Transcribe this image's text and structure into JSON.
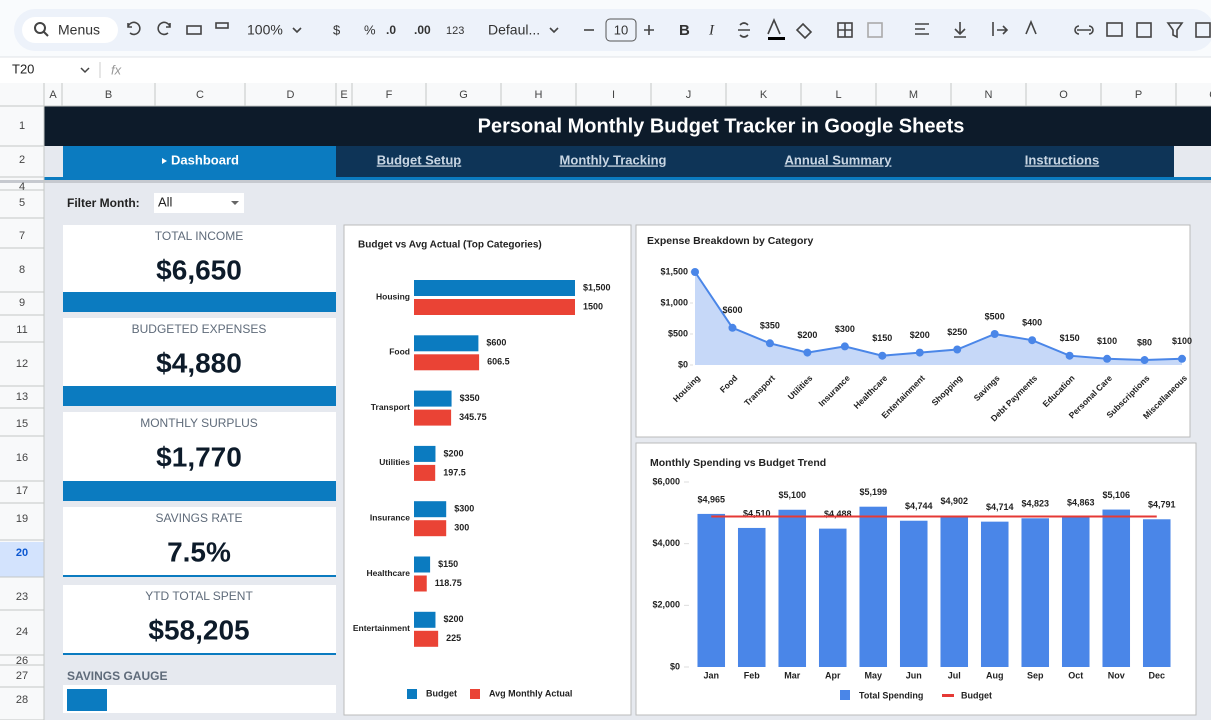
{
  "toolbar": {
    "search": "Menus",
    "zoom": "100%",
    "currency": "$",
    "percent": "%",
    "decrease_decimal": ".0",
    "increase_decimal": ".00",
    "number_format": "123",
    "font": "Defaul...",
    "font_size": "10",
    "bold": "B",
    "italic": "I"
  },
  "formula_bar": {
    "cell": "T20",
    "fx": "fx"
  },
  "columns": [
    "A",
    "B",
    "C",
    "D",
    "E",
    "F",
    "G",
    "H",
    "I",
    "J",
    "K",
    "L",
    "M",
    "N",
    "O",
    "P",
    "Q"
  ],
  "rows": [
    "1",
    "2",
    "4",
    "5",
    "7",
    "8",
    "9",
    "11",
    "12",
    "13",
    "15",
    "16",
    "17",
    "19",
    "20",
    "23",
    "24",
    "26",
    "27",
    "28"
  ],
  "dashboard": {
    "title": "Personal Monthly Budget Tracker in Google Sheets",
    "tabs": [
      "Dashboard",
      "Budget Setup",
      "Monthly Tracking",
      "Annual Summary",
      "Instructions"
    ],
    "filter": {
      "label": "Filter Month:",
      "value": "All"
    },
    "kpis": [
      {
        "label": "TOTAL INCOME",
        "value": "$6,650"
      },
      {
        "label": "BUDGETED EXPENSES",
        "value": "$4,880"
      },
      {
        "label": "MONTHLY SURPLUS",
        "value": "$1,770"
      },
      {
        "label": "SAVINGS RATE",
        "value": "7.5%"
      },
      {
        "label": "YTD TOTAL SPENT",
        "value": "$58,205"
      }
    ],
    "gauge_label": "SAVINGS GAUGE"
  },
  "chart_data": [
    {
      "type": "hbar",
      "title": "Budget vs Avg Actual (Top Categories)",
      "categories": [
        "Housing",
        "Food",
        "Transport",
        "Utilities",
        "Insurance",
        "Healthcare",
        "Entertainment"
      ],
      "series": [
        {
          "name": "Budget",
          "color": "#0b7bc0",
          "values": [
            1500,
            600,
            350,
            200,
            300,
            150,
            200
          ],
          "value_labels": [
            "$1,500",
            "$600",
            "$350",
            "$200",
            "$300",
            "$150",
            "$200"
          ]
        },
        {
          "name": "Avg Monthly Actual",
          "color": "#ea4335",
          "values": [
            1500,
            606.5,
            345.75,
            197.5,
            300,
            118.75,
            225
          ]
        }
      ]
    },
    {
      "type": "area",
      "title": "Expense Breakdown by Category",
      "categories": [
        "Housing",
        "Food",
        "Transport",
        "Utilities",
        "Insurance",
        "Healthcare",
        "Entertainment",
        "Shopping",
        "Savings",
        "Debt Payments",
        "Education",
        "Personal Care",
        "Subscriptions",
        "Miscellaneous"
      ],
      "values": [
        1500,
        600,
        350,
        200,
        300,
        150,
        200,
        250,
        500,
        400,
        150,
        100,
        80,
        100
      ],
      "value_labels": [
        "$1,500",
        "$600",
        "$350",
        "$200",
        "$300",
        "$150",
        "$200",
        "$250",
        "$500",
        "$400",
        "$150",
        "$100",
        "$80",
        "$100"
      ],
      "color": "#4a86e8",
      "ylim": [
        0,
        1500
      ],
      "yticks": [
        {
          "value": 0,
          "label": "$0"
        },
        {
          "value": 500,
          "label": "$500"
        },
        {
          "value": 1000,
          "label": "$1,000"
        },
        {
          "value": 1500,
          "label": "$1,500"
        }
      ]
    },
    {
      "type": "bar_line",
      "title": "Monthly Spending vs Budget Trend",
      "categories": [
        "Jan",
        "Feb",
        "Mar",
        "Apr",
        "May",
        "Jun",
        "Jul",
        "Aug",
        "Sep",
        "Oct",
        "Nov",
        "Dec"
      ],
      "series": [
        {
          "name": "Total Spending",
          "color": "#4a86e8",
          "values": [
            4965,
            4510,
            5100,
            4488,
            5199,
            4744,
            4902,
            4714,
            4823,
            4863,
            5106,
            4791
          ],
          "value_labels": [
            "$4,965",
            "$4,510",
            "$5,100",
            "$4,488",
            "$5,199",
            "$4,744",
            "$4,902",
            "$4,714",
            "$4,823",
            "$4,863",
            "$5,106",
            "$4,791"
          ]
        },
        {
          "name": "Budget",
          "type": "line",
          "color": "#e53935",
          "values": [
            4880,
            4880,
            4880,
            4880,
            4880,
            4880,
            4880,
            4880,
            4880,
            4880,
            4880,
            4880
          ]
        }
      ],
      "ylim": [
        0,
        6000
      ],
      "yticks": [
        {
          "value": 0,
          "label": "$0"
        },
        {
          "value": 2000,
          "label": "$2,000"
        },
        {
          "value": 4000,
          "label": "$4,000"
        },
        {
          "value": 6000,
          "label": "$6,000"
        }
      ]
    }
  ]
}
